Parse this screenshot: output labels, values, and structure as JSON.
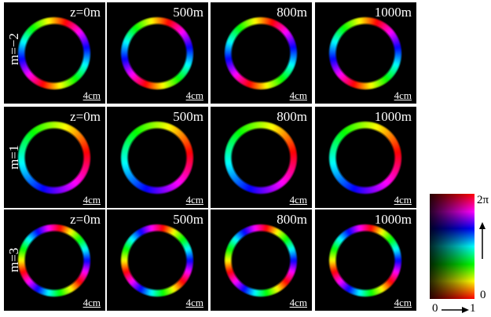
{
  "rows": [
    {
      "label": "m=−2",
      "panels": [
        {
          "label": "z=0m",
          "scale": "4cm"
        },
        {
          "label": "500m",
          "scale": "4cm"
        },
        {
          "label": "800m",
          "scale": "4cm"
        },
        {
          "label": "1000m",
          "scale": "4cm"
        }
      ]
    },
    {
      "label": "m=1",
      "panels": [
        {
          "label": "z=0m",
          "scale": "4cm"
        },
        {
          "label": "500m",
          "scale": "4cm"
        },
        {
          "label": "800m",
          "scale": "4cm"
        },
        {
          "label": "1000m",
          "scale": "4cm"
        }
      ]
    },
    {
      "label": "m=3",
      "panels": [
        {
          "label": "z=0m",
          "scale": "4cm"
        },
        {
          "label": "500m",
          "scale": "4cm"
        },
        {
          "label": "800m",
          "scale": "4cm"
        },
        {
          "label": "1000m",
          "scale": "4cm"
        }
      ]
    }
  ],
  "colorbar": {
    "top": "2π",
    "bottom": "0",
    "x_start": "0",
    "x_end": "1"
  }
}
